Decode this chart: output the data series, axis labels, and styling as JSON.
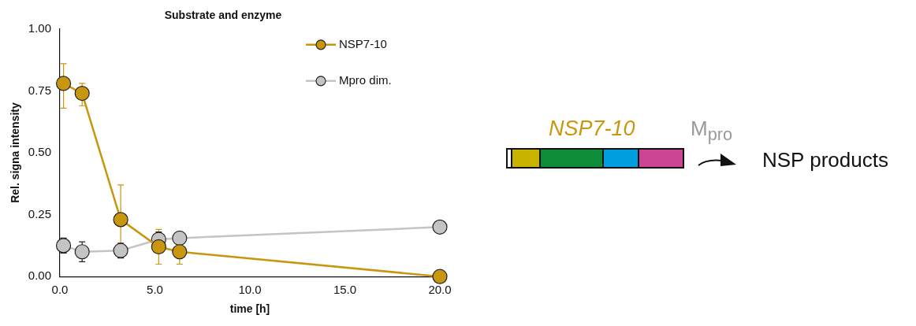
{
  "chart_data": {
    "type": "line",
    "title": "Substrate and enzyme",
    "xlabel": "time [h]",
    "ylabel": "Rel. signa intensity",
    "xlim": [
      0,
      20
    ],
    "xticks": [
      {
        "value": 0,
        "label": "0.0"
      },
      {
        "value": 5,
        "label": "5.0"
      },
      {
        "value": 10,
        "label": "10.0"
      },
      {
        "value": 15,
        "label": "15.0"
      },
      {
        "value": 20,
        "label": "20.0"
      }
    ],
    "ylim": [
      0,
      1
    ],
    "yticks": [
      {
        "value": 0,
        "label": "0.00"
      },
      {
        "value": 0.25,
        "label": "0.25"
      },
      {
        "value": 0.5,
        "label": "0.50"
      },
      {
        "value": 0.75,
        "label": "0.75"
      },
      {
        "value": 1,
        "label": "1.00"
      }
    ],
    "grid": false,
    "legend": "top right",
    "marker": "circle",
    "line_style": "solid",
    "series": [
      {
        "name": "NSP7-10",
        "color": "#c8960f",
        "x": [
          0.19,
          1.17,
          3.2,
          5.2,
          6.3,
          20
        ],
        "values": [
          0.78,
          0.74,
          0.23,
          0.12,
          0.1,
          0.0
        ],
        "errors": [
          [
            0.68,
            0.86
          ],
          [
            0.69,
            0.78
          ],
          0.14,
          0.07,
          0.05,
          null
        ]
      },
      {
        "name": "Mpro dim.",
        "color": "#c4c4c4",
        "x": [
          0.19,
          1.17,
          3.2,
          5.2,
          6.3,
          20
        ],
        "values": [
          0.125,
          0.1,
          0.105,
          0.15,
          0.155,
          0.2
        ],
        "errors": [
          0.03,
          0.04,
          0.03,
          0.03,
          null,
          null
        ]
      }
    ],
    "annotations": [
      "NSP7-10",
      "M$_{pro}$",
      "NSP products"
    ]
  }
}
